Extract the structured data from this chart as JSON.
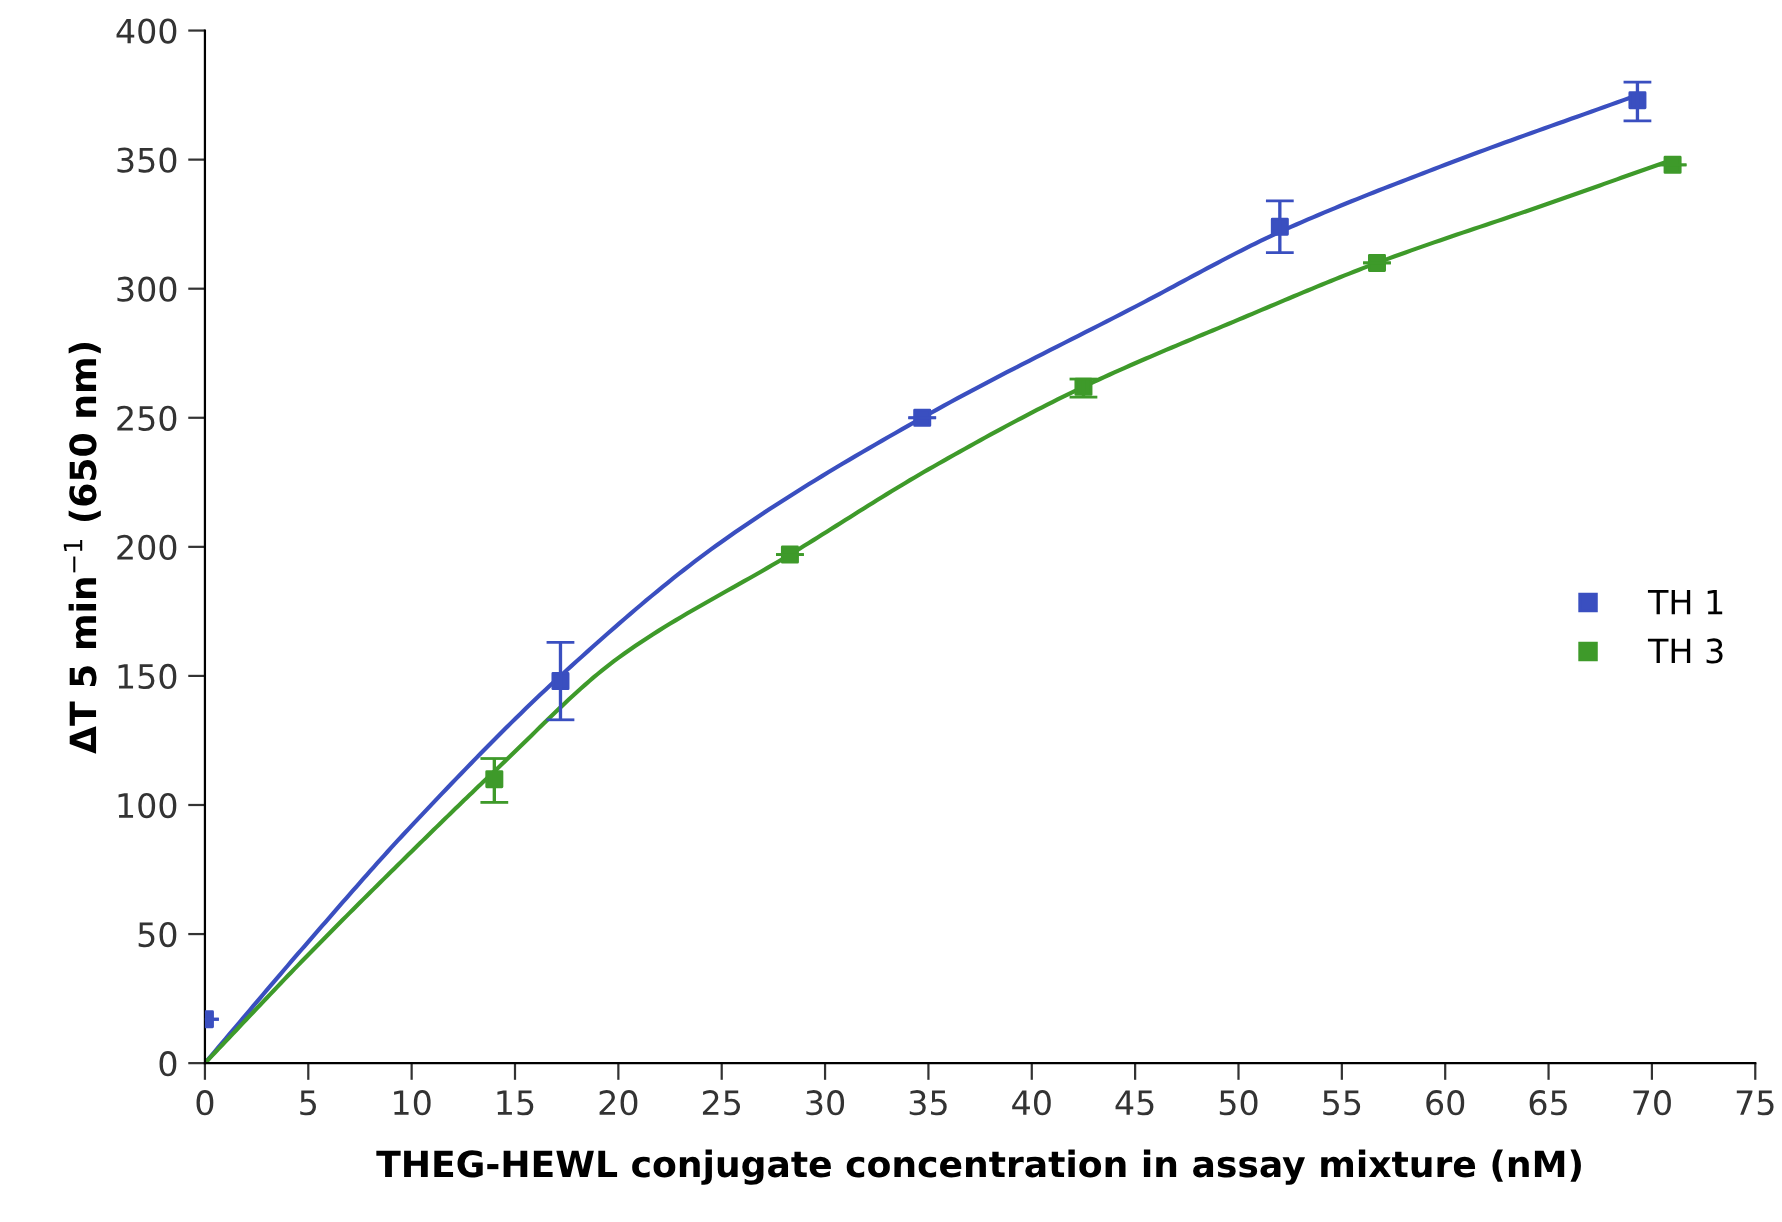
{
  "chart_data": {
    "type": "scatter",
    "xlabel": "THEG-HEWL conjugate concentration in assay mixture (nM)",
    "ylabel": "ΔT 5 min$^{−1}$ (650 nm)",
    "xlim": [
      0,
      75
    ],
    "ylim": [
      0,
      400
    ],
    "xticks": [
      0,
      5,
      10,
      15,
      20,
      25,
      30,
      35,
      40,
      45,
      50,
      55,
      60,
      65,
      70,
      75
    ],
    "yticks": [
      0,
      50,
      100,
      150,
      200,
      250,
      300,
      350,
      400
    ],
    "grid": false,
    "legend": "right",
    "series": [
      {
        "name": "TH 1",
        "marker": "square",
        "color": "#3a4fc0",
        "x": [
          0,
          17.2,
          34.7,
          52,
          69.3
        ],
        "values": [
          17,
          148,
          250,
          324,
          373
        ],
        "errors": [
          null,
          [
            133,
            163
          ],
          null,
          [
            314,
            334
          ],
          [
            365,
            380
          ]
        ]
      },
      {
        "name": "TH 3",
        "marker": "square",
        "color": "#3e9a2a",
        "x": [
          14,
          28.3,
          42.5,
          56.7,
          71
        ],
        "values": [
          110,
          197,
          262,
          310,
          348
        ],
        "errors": [
          [
            101,
            118
          ],
          null,
          [
            258,
            265
          ],
          null,
          null
        ]
      },
      {
        "type": "line",
        "color": "#3a4fc0",
        "x": [
          0,
          5,
          10,
          17.2,
          25,
          34.7,
          45,
          52,
          60,
          69.3
        ],
        "values": [
          0,
          47,
          92,
          150,
          202,
          250,
          293,
          322,
          348,
          375
        ]
      },
      {
        "type": "line",
        "color": "#3e9a2a",
        "x": [
          0,
          5,
          10,
          14,
          20,
          28.3,
          35,
          42.5,
          50,
          56.7,
          65,
          71
        ],
        "values": [
          0,
          42,
          82,
          113,
          157,
          197,
          230,
          262,
          288,
          310,
          333,
          350
        ]
      }
    ]
  }
}
